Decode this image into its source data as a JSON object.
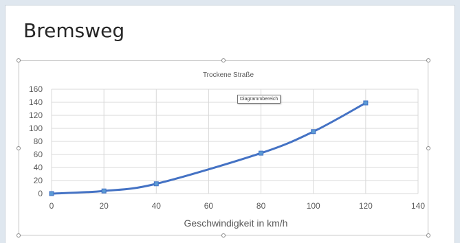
{
  "slide": {
    "title": "Bremsweg"
  },
  "tooltip": {
    "text": "Diagrammbereich"
  },
  "colors": {
    "series": "#4472c4",
    "marker_fill": "#5b9bd5",
    "grid": "#d9d9d9",
    "axis_text": "#595959"
  },
  "chart_data": {
    "type": "scatter",
    "title": "Trockene Straße",
    "xlabel": "Geschwindigkeit in km/h",
    "ylabel": "",
    "xlim": [
      0,
      140
    ],
    "ylim": [
      0,
      160
    ],
    "xticks": [
      0,
      20,
      40,
      60,
      80,
      100,
      120,
      140
    ],
    "yticks": [
      0,
      20,
      40,
      60,
      80,
      100,
      120,
      140,
      160
    ],
    "grid": true,
    "smooth_line": true,
    "legend": "none",
    "series": [
      {
        "x": [
          0,
          20,
          40,
          80,
          100,
          120
        ],
        "y": [
          0,
          4,
          15,
          62,
          95,
          139
        ]
      }
    ]
  }
}
